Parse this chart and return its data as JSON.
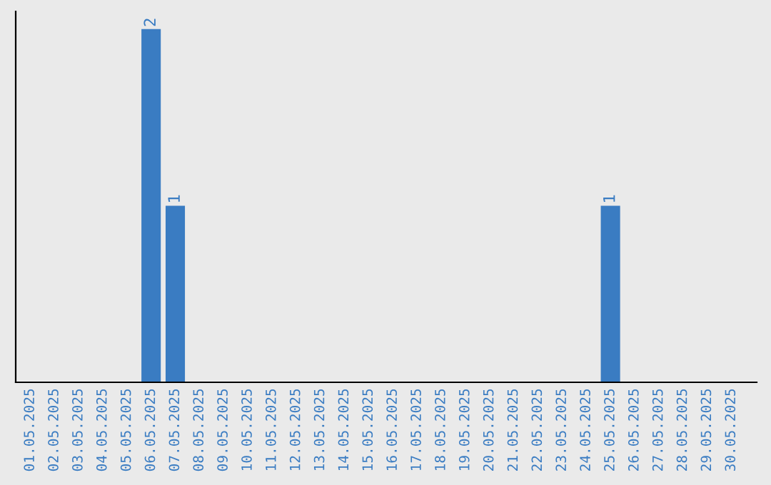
{
  "chart_data": {
    "type": "bar",
    "categories": [
      "01.05.2025",
      "02.05.2025",
      "03.05.2025",
      "04.05.2025",
      "05.05.2025",
      "06.05.2025",
      "07.05.2025",
      "08.05.2025",
      "09.05.2025",
      "10.05.2025",
      "11.05.2025",
      "12.05.2025",
      "13.05.2025",
      "14.05.2025",
      "15.05.2025",
      "16.05.2025",
      "17.05.2025",
      "18.05.2025",
      "19.05.2025",
      "20.05.2025",
      "21.05.2025",
      "22.05.2025",
      "23.05.2025",
      "24.05.2025",
      "25.05.2025",
      "26.05.2025",
      "27.05.2025",
      "28.05.2025",
      "29.05.2025",
      "30.05.2025"
    ],
    "values": [
      0,
      0,
      0,
      0,
      0,
      2,
      1,
      0,
      0,
      0,
      0,
      0,
      0,
      0,
      0,
      0,
      0,
      0,
      0,
      0,
      0,
      0,
      0,
      0,
      1,
      0,
      0,
      0,
      0,
      0
    ],
    "value_labels": [
      null,
      null,
      null,
      null,
      null,
      "2",
      "1",
      null,
      null,
      null,
      null,
      null,
      null,
      null,
      null,
      null,
      null,
      null,
      null,
      null,
      null,
      null,
      null,
      null,
      "1",
      null,
      null,
      null,
      null,
      null
    ],
    "color": "#3a7cc2",
    "grid": false,
    "legend": false
  }
}
